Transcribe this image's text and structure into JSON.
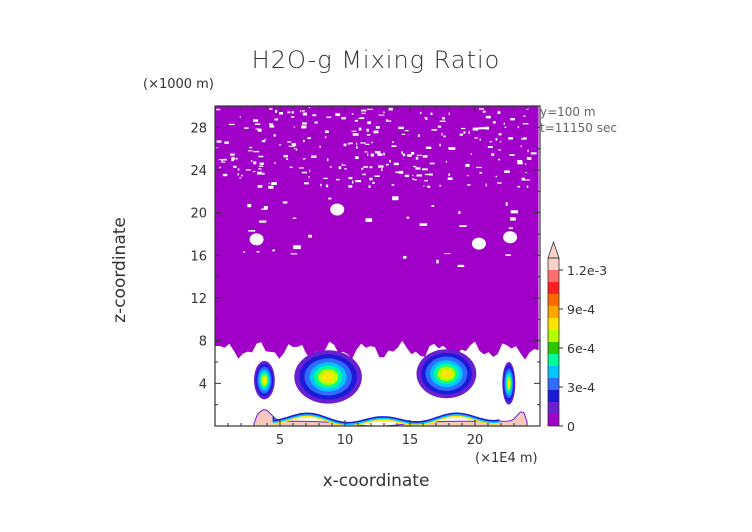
{
  "chart_data": {
    "type": "heatmap",
    "title": "H2O-g Mixing Ratio",
    "xlabel": "x-coordinate",
    "ylabel": "z-coordinate",
    "x_multiplier": "(×1E4 m)",
    "y_multiplier": "(×1000 m)",
    "xlim": [
      0,
      25
    ],
    "ylim": [
      0,
      30
    ],
    "x_ticks": [
      "5",
      "10",
      "15",
      "20"
    ],
    "y_ticks": [
      "4",
      "8",
      "12",
      "16",
      "20",
      "24",
      "28"
    ],
    "annotations": [
      "y=100 m",
      "t=11150 sec"
    ],
    "colorbar": {
      "labels": [
        "1.2e-3",
        "9e-4",
        "6e-4",
        "3e-4",
        "0"
      ],
      "levels": [
        0,
        0.0003,
        0.0006,
        0.0009,
        0.0012
      ],
      "colors": [
        "#a000c8",
        "#6a1fd0",
        "#1a1ad8",
        "#2f6bff",
        "#00c6ff",
        "#00ff96",
        "#2ec800",
        "#b4ff00",
        "#ffe600",
        "#ffa500",
        "#ff6a00",
        "#ff1e1e",
        "#ff6e6e",
        "#fad2c8"
      ]
    },
    "field_colors": {
      "upper_layer": "#a000c8",
      "clear_air": "#ffffff",
      "terrain": "#f5c8bd"
    }
  }
}
